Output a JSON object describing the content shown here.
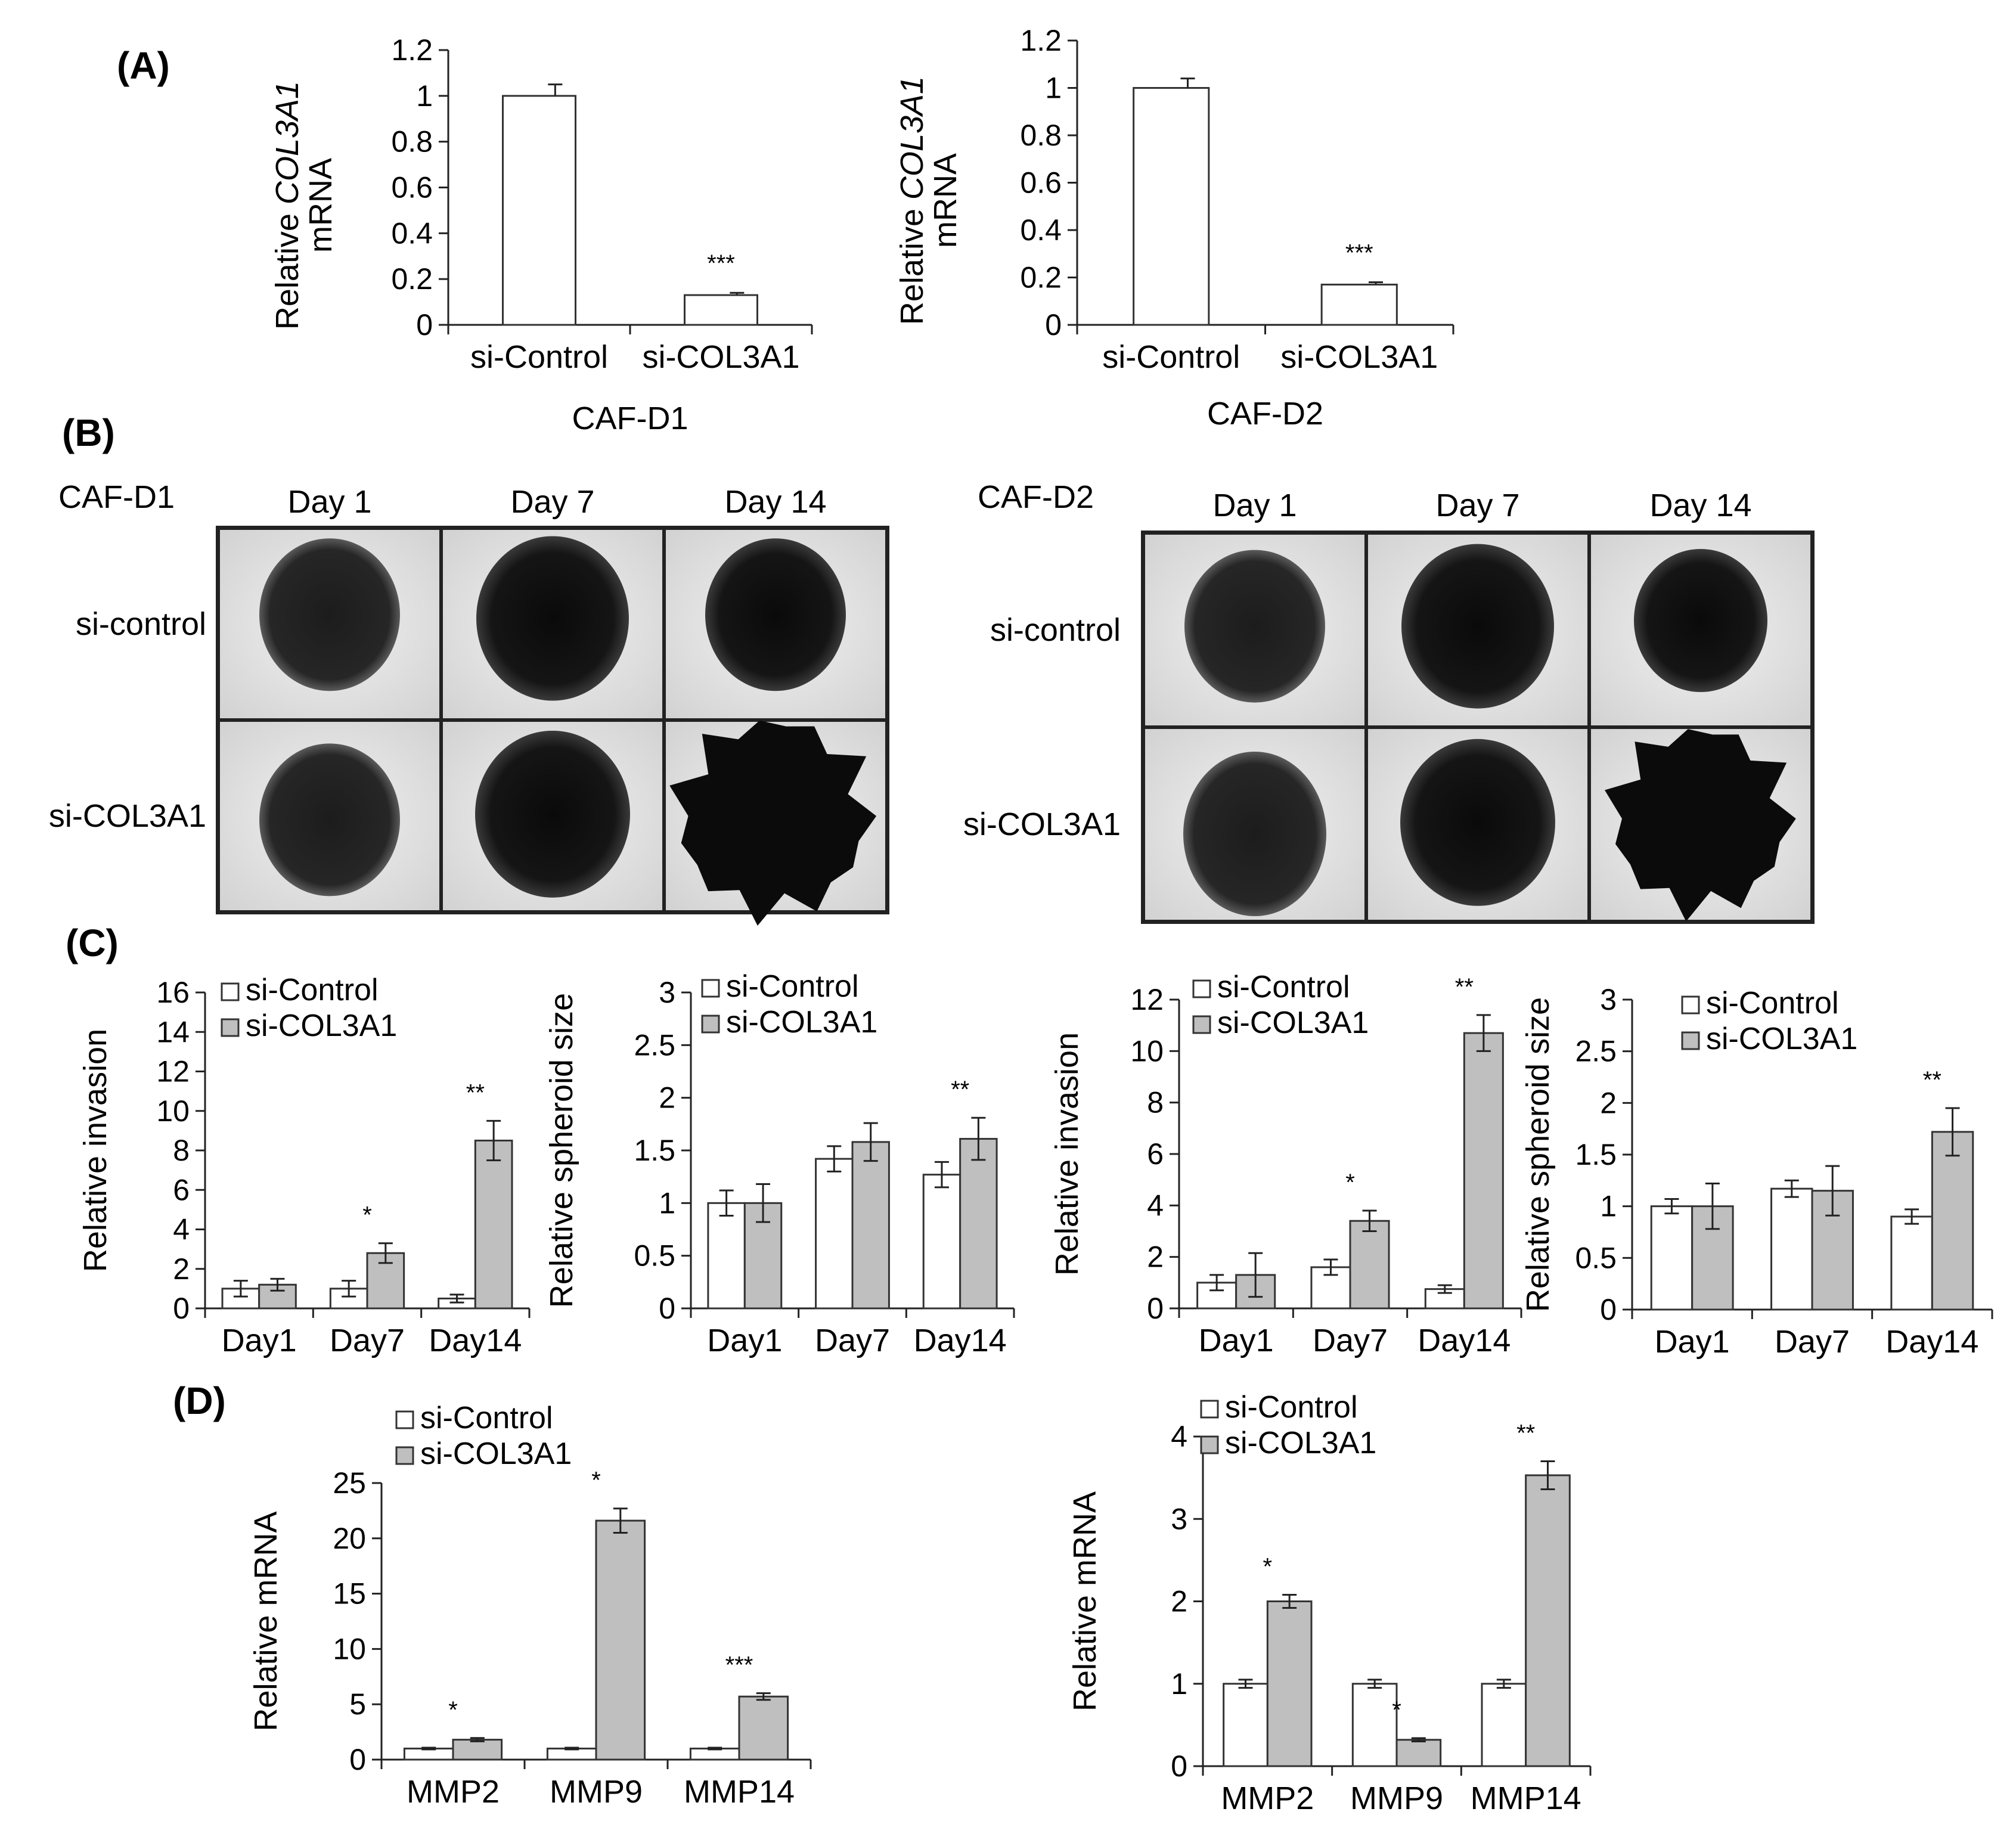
{
  "colors": {
    "control": "#ffffff",
    "knockdown": "#bfbfbf",
    "stroke": "#333333"
  },
  "panels": {
    "A": "(A)",
    "B": "(B)",
    "C": "(C)",
    "D": "(D)"
  },
  "legend": {
    "control": "si-Control",
    "knockdown": "si-COL3A1"
  },
  "microscopy": {
    "left": {
      "title": "CAF-D1",
      "days": [
        "Day 1",
        "Day 7",
        "Day 14"
      ],
      "rows": [
        "si-control",
        "si-COL3A1"
      ]
    },
    "right": {
      "title": "CAF-D2",
      "days": [
        "Day 1",
        "Day 7",
        "Day 14"
      ],
      "rows": [
        "si-control",
        "si-COL3A1"
      ]
    }
  },
  "chart_data": [
    {
      "id": "A1",
      "type": "bar",
      "xlabel": "CAF-D1",
      "ylabel": "Relative COL3A1 mRNA",
      "ylabel_parts": [
        "Relative ",
        "COL3A1",
        "mRNA"
      ],
      "categories": [
        "si-Control",
        "si-COL3A1"
      ],
      "values": [
        1.0,
        0.13
      ],
      "errors": [
        0.05,
        0.01
      ],
      "colors": [
        "#ffffff",
        "#ffffff"
      ],
      "stars": [
        "",
        "***"
      ],
      "ylim": [
        0,
        1.2
      ],
      "yticks": [
        0,
        0.2,
        0.4,
        0.6,
        0.8,
        1,
        1.2
      ],
      "ytick_labels": [
        "0",
        "0.2",
        "0.4",
        "0.6",
        "0.8",
        "1",
        "1.2"
      ]
    },
    {
      "id": "A2",
      "type": "bar",
      "xlabel": "CAF-D2",
      "ylabel": "Relative COL3A1 mRNA",
      "ylabel_parts": [
        "Relative ",
        "COL3A1",
        "mRNA"
      ],
      "categories": [
        "si-Control",
        "si-COL3A1"
      ],
      "values": [
        1.0,
        0.17
      ],
      "errors": [
        0.04,
        0.01
      ],
      "colors": [
        "#ffffff",
        "#ffffff"
      ],
      "stars": [
        "",
        "***"
      ],
      "ylim": [
        0,
        1.2
      ],
      "yticks": [
        0,
        0.2,
        0.4,
        0.6,
        0.8,
        1,
        1.2
      ],
      "ytick_labels": [
        "0",
        "0.2",
        "0.4",
        "0.6",
        "0.8",
        "1",
        "1.2"
      ]
    },
    {
      "id": "C1",
      "type": "bar",
      "ylabel": "Relative invasion",
      "categories": [
        "Day1",
        "Day7",
        "Day14"
      ],
      "series": [
        {
          "name": "si-Control",
          "values": [
            1.0,
            1.0,
            0.5
          ],
          "errors": [
            0.4,
            0.4,
            0.2
          ]
        },
        {
          "name": "si-COL3A1",
          "values": [
            1.2,
            2.8,
            8.5
          ],
          "errors": [
            0.3,
            0.5,
            1.0
          ]
        }
      ],
      "stars": [
        "",
        "*",
        "**"
      ],
      "ylim": [
        0,
        16
      ],
      "yticks": [
        0,
        2,
        4,
        6,
        8,
        10,
        12,
        14,
        16
      ],
      "ytick_labels": [
        "0",
        "2",
        "4",
        "6",
        "8",
        "10",
        "12",
        "14",
        "16"
      ]
    },
    {
      "id": "C2",
      "type": "bar",
      "ylabel": "Relative spheroid size",
      "categories": [
        "Day1",
        "Day7",
        "Day14"
      ],
      "series": [
        {
          "name": "si-Control",
          "values": [
            1.0,
            1.42,
            1.27
          ],
          "errors": [
            0.12,
            0.12,
            0.12
          ]
        },
        {
          "name": "si-COL3A1",
          "values": [
            1.0,
            1.58,
            1.61
          ],
          "errors": [
            0.18,
            0.18,
            0.2
          ]
        }
      ],
      "stars": [
        "",
        "",
        "**"
      ],
      "ylim": [
        0,
        3
      ],
      "yticks": [
        0,
        0.5,
        1,
        1.5,
        2,
        2.5,
        3
      ],
      "ytick_labels": [
        "0",
        "0.5",
        "1",
        "1.5",
        "2",
        "2.5",
        "3"
      ]
    },
    {
      "id": "C3",
      "type": "bar",
      "ylabel": "Relative invasion",
      "categories": [
        "Day1",
        "Day7",
        "Day14"
      ],
      "series": [
        {
          "name": "si-Control",
          "values": [
            1.0,
            1.6,
            0.75
          ],
          "errors": [
            0.3,
            0.3,
            0.15
          ]
        },
        {
          "name": "si-COL3A1",
          "values": [
            1.3,
            3.4,
            10.7
          ],
          "errors": [
            0.85,
            0.4,
            0.7
          ]
        }
      ],
      "stars": [
        "",
        "*",
        "**"
      ],
      "ylim": [
        0,
        12
      ],
      "yticks": [
        0,
        2,
        4,
        6,
        8,
        10,
        12
      ],
      "ytick_labels": [
        "0",
        "2",
        "4",
        "6",
        "8",
        "10",
        "12"
      ]
    },
    {
      "id": "C4",
      "type": "bar",
      "ylabel": "Relative spheroid size",
      "categories": [
        "Day1",
        "Day7",
        "Day14"
      ],
      "series": [
        {
          "name": "si-Control",
          "values": [
            1.0,
            1.17,
            0.9
          ],
          "errors": [
            0.07,
            0.08,
            0.07
          ]
        },
        {
          "name": "si-COL3A1",
          "values": [
            1.0,
            1.15,
            1.72
          ],
          "errors": [
            0.22,
            0.24,
            0.23
          ]
        }
      ],
      "stars": [
        "",
        "",
        "**"
      ],
      "ylim": [
        0,
        3
      ],
      "yticks": [
        0,
        0.5,
        1,
        1.5,
        2,
        2.5,
        3
      ],
      "ytick_labels": [
        "0",
        "0.5",
        "1",
        "1.5",
        "2",
        "2.5",
        "3"
      ]
    },
    {
      "id": "D1",
      "type": "bar",
      "ylabel": "Relative mRNA",
      "categories": [
        "MMP2",
        "MMP9",
        "MMP14"
      ],
      "series": [
        {
          "name": "si-Control",
          "values": [
            1.0,
            1.0,
            1.0
          ],
          "errors": [
            0.08,
            0.08,
            0.08
          ]
        },
        {
          "name": "si-COL3A1",
          "values": [
            1.8,
            21.6,
            5.7
          ],
          "errors": [
            0.15,
            1.1,
            0.3
          ]
        }
      ],
      "stars": [
        "*",
        "*",
        "***"
      ],
      "ylim": [
        0,
        25
      ],
      "yticks": [
        0,
        5,
        10,
        15,
        20,
        25
      ],
      "ytick_labels": [
        "0",
        "5",
        "10",
        "15",
        "20",
        "25"
      ]
    },
    {
      "id": "D2",
      "type": "bar",
      "ylabel": "Relative mRNA",
      "categories": [
        "MMP2",
        "MMP9",
        "MMP14"
      ],
      "series": [
        {
          "name": "si-Control",
          "values": [
            1.0,
            1.0,
            1.0
          ],
          "errors": [
            0.05,
            0.05,
            0.05
          ]
        },
        {
          "name": "si-COL3A1",
          "values": [
            2.0,
            0.32,
            3.53
          ],
          "errors": [
            0.08,
            0.02,
            0.17
          ]
        }
      ],
      "stars": [
        "*",
        "*",
        "**"
      ],
      "ylim": [
        0,
        4
      ],
      "yticks": [
        0,
        1,
        2,
        3,
        4
      ],
      "ytick_labels": [
        "0",
        "1",
        "2",
        "3",
        "4"
      ]
    }
  ]
}
